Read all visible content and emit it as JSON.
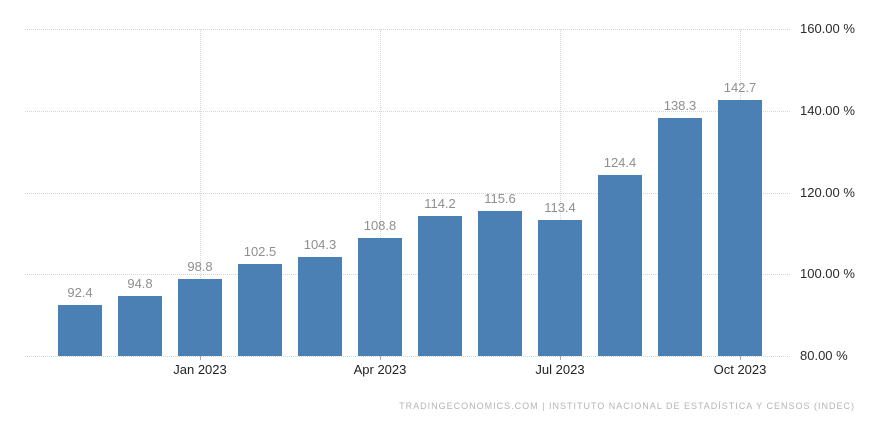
{
  "chart_data": {
    "type": "bar",
    "title": "",
    "xlabel": "",
    "ylabel": "",
    "ylim": [
      80,
      160
    ],
    "grid": "dotted",
    "legend": "none",
    "values": [
      92.4,
      94.8,
      98.8,
      102.5,
      104.3,
      108.8,
      114.2,
      115.6,
      113.4,
      124.4,
      138.3,
      142.7
    ],
    "bar_labels": [
      "92.4",
      "94.8",
      "98.8",
      "102.5",
      "104.3",
      "108.8",
      "114.2",
      "115.6",
      "113.4",
      "124.4",
      "138.3",
      "142.7"
    ],
    "x_ticks": [
      {
        "label": "Jan 2023",
        "bar_index": 2
      },
      {
        "label": "Apr 2023",
        "bar_index": 5
      },
      {
        "label": "Jul 2023",
        "bar_index": 8
      },
      {
        "label": "Oct 2023",
        "bar_index": 11
      }
    ],
    "y_ticks": [
      "160.00 %",
      "140.00 %",
      "120.00 %",
      "100.00 %",
      "80.00 %"
    ],
    "colors": {
      "bar": "#4a80b4",
      "grid": "#d6d6d6",
      "bar_label": "#8f8f8f",
      "axis_label": "#222222",
      "y_axis_label": "#2b2b2b",
      "tick": "#aaaaaa",
      "footer": "#b4b4b4"
    }
  },
  "footer": {
    "text": "TRADINGECONOMICS.COM | INSTITUTO NACIONAL DE ESTADÍSTICA Y CENSOS (INDEC)"
  }
}
